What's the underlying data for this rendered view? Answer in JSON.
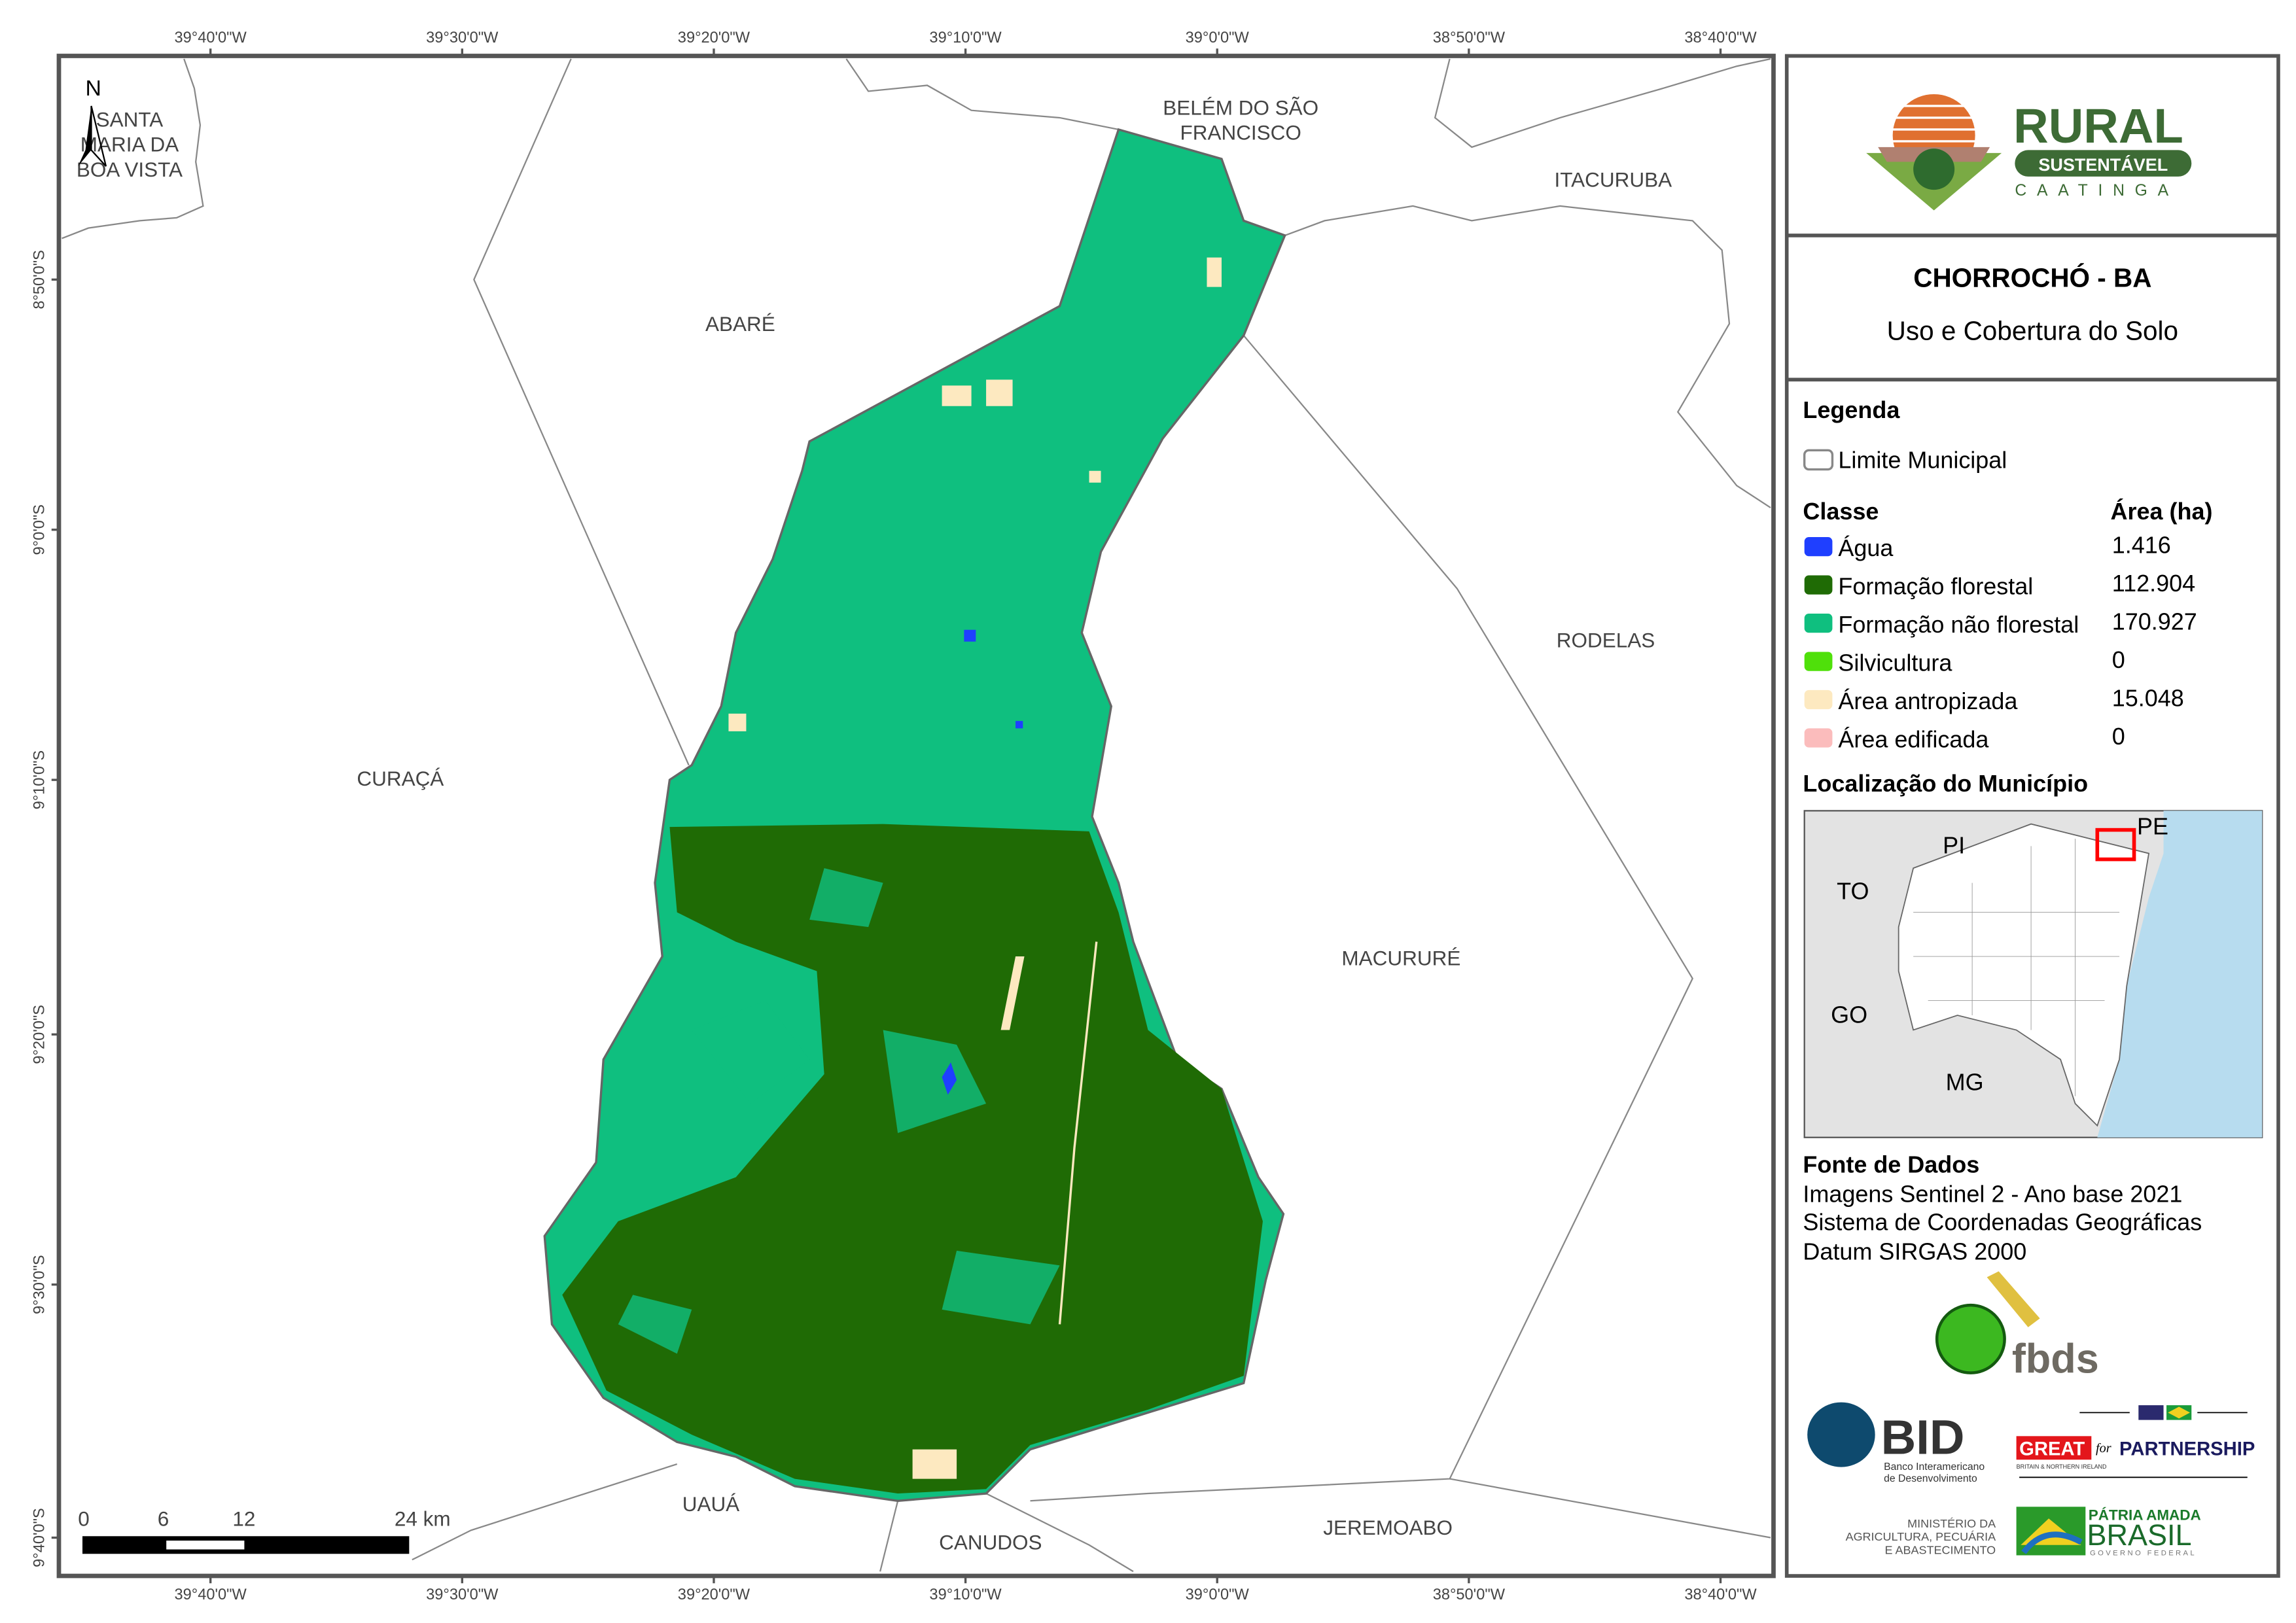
{
  "header": {
    "logo": {
      "main": "RURAL",
      "band": "SUSTENTÁVEL",
      "sub": "CAATINGA"
    },
    "title": "CHORROCHÓ - BA",
    "subtitle": "Uso e Cobertura do Solo"
  },
  "legend": {
    "title": "Legenda",
    "boundary_label": "Limite Municipal",
    "class_header": "Classe",
    "area_header": "Área (ha)",
    "classes": [
      {
        "label": "Água",
        "area": "1.416",
        "color": "#1f3fff"
      },
      {
        "label": "Formação florestal",
        "area": "112.904",
        "color": "#1f6b05"
      },
      {
        "label": "Formação não florestal",
        "area": "170.927",
        "color": "#0fbf7f"
      },
      {
        "label": "Silvicultura",
        "area": "0",
        "color": "#4fe00a"
      },
      {
        "label": "Área antropizada",
        "area": "15.048",
        "color": "#fde9c0"
      },
      {
        "label": "Área edificada",
        "area": "0",
        "color": "#fbbcbc"
      }
    ]
  },
  "location": {
    "title": "Localização do Município",
    "states": [
      "PI",
      "PE",
      "TO",
      "GO",
      "MG"
    ],
    "ocean_color": "#b7dcef",
    "highlight_color": "#ff0000"
  },
  "sources": {
    "title": "Fonte de Dados",
    "lines": [
      "Imagens Sentinel 2 - Ano base 2021",
      "Sistema de Coordenadas Geográficas",
      "Datum SIRGAS 2000"
    ]
  },
  "partners": {
    "fbds": "fbds",
    "bid": "BID",
    "bid_sub1": "Banco Interamericano",
    "bid_sub2": "de Desenvolvimento",
    "great": "GREAT",
    "great_for": "for",
    "great_partnership": "PARTNERSHIP",
    "great_sub": "BRITAIN & NORTHERN IRELAND",
    "ministry1": "MINISTÉRIO DA",
    "ministry2": "AGRICULTURA, PECUÁRIA",
    "ministry3": "E ABASTECIMENTO",
    "brasil1": "PÁTRIA AMADA",
    "brasil2": "BRASIL",
    "brasil3": "GOVERNO FEDERAL"
  },
  "map": {
    "north": "N",
    "longitudes": [
      "39°40'0\"W",
      "39°30'0\"W",
      "39°20'0\"W",
      "39°10'0\"W",
      "39°0'0\"W",
      "38°50'0\"W",
      "38°40'0\"W"
    ],
    "latitudes": [
      "8°50'0\"S",
      "9°0'0\"S",
      "9°10'0\"S",
      "9°20'0\"S",
      "9°30'0\"S",
      "9°40'0\"S"
    ],
    "municipalities": {
      "santa_maria": [
        "SANTA",
        "MARIA DA",
        "BOA VISTA"
      ],
      "belem": [
        "BELÉM DO SÃO",
        "FRANCISCO"
      ],
      "itacuruba": "ITACURUBA",
      "abare": "ABARÉ",
      "rodelas": "RODELAS",
      "curaca": "CURAÇÁ",
      "macorure": "MACURURÉ",
      "uaua": "UAUÁ",
      "canudos": "CANUDOS",
      "jeremoabo": "JEREMOABO"
    },
    "scale": {
      "labels": [
        "0",
        "6",
        "12",
        "24 km"
      ]
    }
  }
}
